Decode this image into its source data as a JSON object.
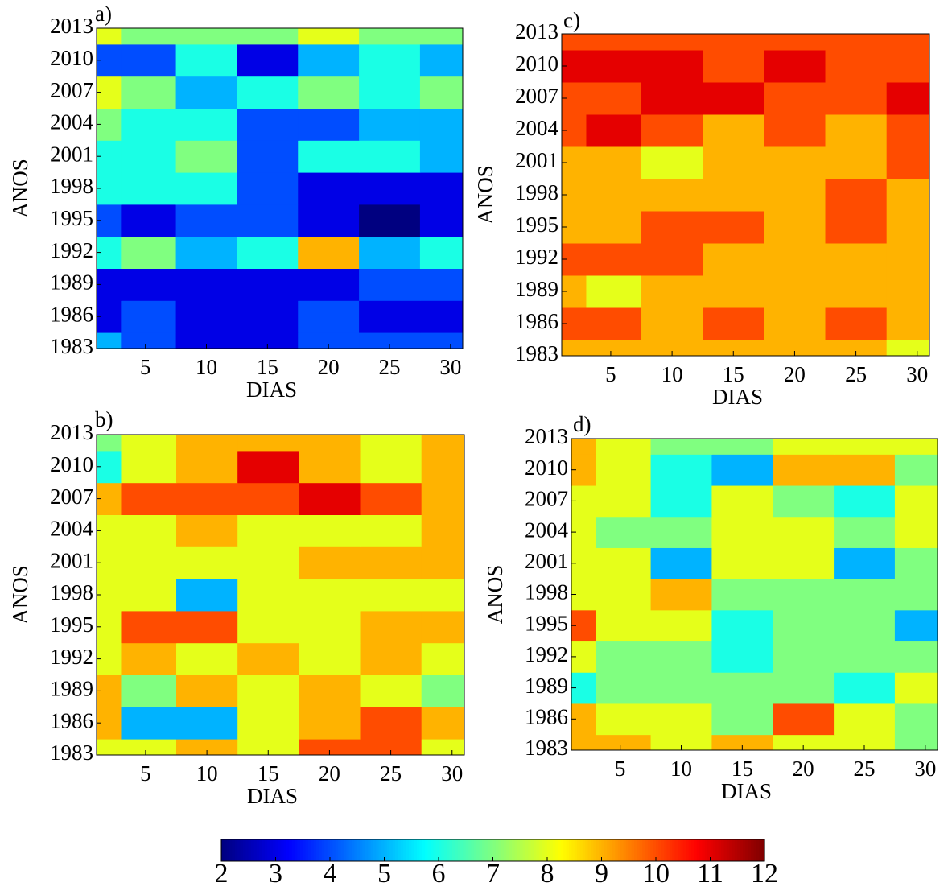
{
  "chart_data": [
    {
      "type": "contour",
      "title": "a)",
      "xlabel": "DIAS",
      "ylabel": "ANOS",
      "x": [
        1,
        5,
        10,
        15,
        20,
        25,
        30
      ],
      "y": [
        1983,
        1986,
        1989,
        1992,
        1995,
        1998,
        2001,
        2004,
        2007,
        2010,
        2013
      ],
      "z": [
        [
          5,
          4,
          3,
          3,
          4,
          4,
          4
        ],
        [
          3,
          4,
          3,
          3,
          4,
          3,
          3
        ],
        [
          3,
          3,
          3,
          3,
          3,
          4,
          4
        ],
        [
          6,
          7,
          5,
          6,
          9,
          5,
          6
        ],
        [
          4,
          3,
          4,
          4,
          3,
          2,
          3
        ],
        [
          6,
          6,
          6,
          4,
          3,
          3,
          3
        ],
        [
          6,
          6,
          7,
          4,
          6,
          6,
          5
        ],
        [
          7,
          6,
          6,
          4,
          4,
          5,
          5
        ],
        [
          8,
          7,
          5,
          6,
          7,
          6,
          7
        ],
        [
          4,
          4,
          6,
          3,
          5,
          6,
          5
        ],
        [
          8,
          7,
          7,
          7,
          8,
          7,
          7
        ]
      ],
      "xlim": [
        1,
        31
      ],
      "xticks": [
        5,
        10,
        15,
        20,
        25,
        30
      ],
      "ylim": [
        1983,
        2013
      ],
      "yticks": [
        1983,
        1986,
        1989,
        1992,
        1995,
        1998,
        2001,
        2004,
        2007,
        2010,
        2013
      ]
    },
    {
      "type": "contour",
      "title": "b)",
      "xlabel": "DIAS",
      "ylabel": "ANOS",
      "x": [
        1,
        5,
        10,
        15,
        20,
        25,
        30
      ],
      "y": [
        1983,
        1986,
        1989,
        1992,
        1995,
        1998,
        2001,
        2004,
        2007,
        2010,
        2013
      ],
      "z": [
        [
          8,
          8,
          9,
          8,
          10,
          10,
          8
        ],
        [
          9,
          5,
          5,
          8,
          9,
          10,
          9
        ],
        [
          9,
          7,
          9,
          8,
          9,
          8,
          7
        ],
        [
          8,
          9,
          8,
          9,
          8,
          9,
          8
        ],
        [
          8,
          10,
          10,
          8,
          8,
          9,
          9
        ],
        [
          8,
          8,
          5,
          8,
          8,
          8,
          8
        ],
        [
          8,
          8,
          8,
          8,
          9,
          9,
          9
        ],
        [
          8,
          8,
          9,
          8,
          8,
          8,
          9
        ],
        [
          9,
          10,
          10,
          10,
          11,
          10,
          9
        ],
        [
          6,
          8,
          9,
          11,
          9,
          8,
          9
        ],
        [
          7,
          8,
          9,
          9,
          9,
          8,
          9
        ]
      ],
      "xlim": [
        1,
        31
      ],
      "xticks": [
        5,
        10,
        15,
        20,
        25,
        30
      ],
      "ylim": [
        1983,
        2013
      ],
      "yticks": [
        1983,
        1986,
        1989,
        1992,
        1995,
        1998,
        2001,
        2004,
        2007,
        2010,
        2013
      ]
    },
    {
      "type": "contour",
      "title": "c)",
      "xlabel": "DIAS",
      "ylabel": "ANOS",
      "x": [
        1,
        5,
        10,
        15,
        20,
        25,
        30
      ],
      "y": [
        1983,
        1986,
        1989,
        1992,
        1995,
        1998,
        2001,
        2004,
        2007,
        2010,
        2013
      ],
      "z": [
        [
          9,
          9,
          9,
          9,
          9,
          9,
          8
        ],
        [
          10,
          10,
          9,
          10,
          9,
          10,
          9
        ],
        [
          9,
          8,
          9,
          9,
          9,
          9,
          9
        ],
        [
          10,
          10,
          10,
          9,
          9,
          9,
          9
        ],
        [
          9,
          9,
          10,
          10,
          9,
          10,
          9
        ],
        [
          9,
          9,
          9,
          9,
          9,
          10,
          9
        ],
        [
          9,
          9,
          8,
          9,
          9,
          9,
          10
        ],
        [
          10,
          11,
          10,
          9,
          10,
          9,
          10
        ],
        [
          10,
          10,
          11,
          11,
          10,
          10,
          11
        ],
        [
          11,
          11,
          11,
          10,
          11,
          10,
          10
        ],
        [
          10,
          10,
          10,
          10,
          10,
          10,
          10
        ]
      ],
      "xlim": [
        1,
        31
      ],
      "xticks": [
        5,
        10,
        15,
        20,
        25,
        30
      ],
      "ylim": [
        1983,
        2013
      ],
      "yticks": [
        1983,
        1986,
        1989,
        1992,
        1995,
        1998,
        2001,
        2004,
        2007,
        2010,
        2013
      ]
    },
    {
      "type": "contour",
      "title": "d)",
      "xlabel": "DIAS",
      "ylabel": "ANOS",
      "x": [
        1,
        5,
        10,
        15,
        20,
        25,
        30
      ],
      "y": [
        1983,
        1986,
        1989,
        1992,
        1995,
        1998,
        2001,
        2004,
        2007,
        2010,
        2013
      ],
      "z": [
        [
          9,
          9,
          8,
          9,
          8,
          8,
          7
        ],
        [
          9,
          8,
          8,
          7,
          10,
          8,
          7
        ],
        [
          6,
          7,
          7,
          7,
          7,
          6,
          8
        ],
        [
          8,
          7,
          7,
          6,
          7,
          7,
          7
        ],
        [
          10,
          8,
          8,
          6,
          7,
          7,
          5
        ],
        [
          8,
          8,
          9,
          7,
          7,
          7,
          7
        ],
        [
          8,
          8,
          5,
          8,
          8,
          5,
          7
        ],
        [
          8,
          7,
          7,
          8,
          8,
          7,
          8
        ],
        [
          8,
          8,
          6,
          8,
          7,
          6,
          8
        ],
        [
          9,
          8,
          6,
          5,
          9,
          9,
          7
        ],
        [
          9,
          8,
          7,
          7,
          8,
          8,
          8
        ]
      ],
      "xlim": [
        1,
        31
      ],
      "xticks": [
        5,
        10,
        15,
        20,
        25,
        30
      ],
      "ylim": [
        1983,
        2013
      ],
      "yticks": [
        1983,
        1986,
        1989,
        1992,
        1995,
        1998,
        2001,
        2004,
        2007,
        2010,
        2013
      ]
    }
  ],
  "colorbar": {
    "colormap": "jet",
    "lim": [
      2,
      12
    ],
    "ticks": [
      2,
      3,
      4,
      5,
      6,
      7,
      8,
      9,
      10,
      11,
      12
    ]
  }
}
